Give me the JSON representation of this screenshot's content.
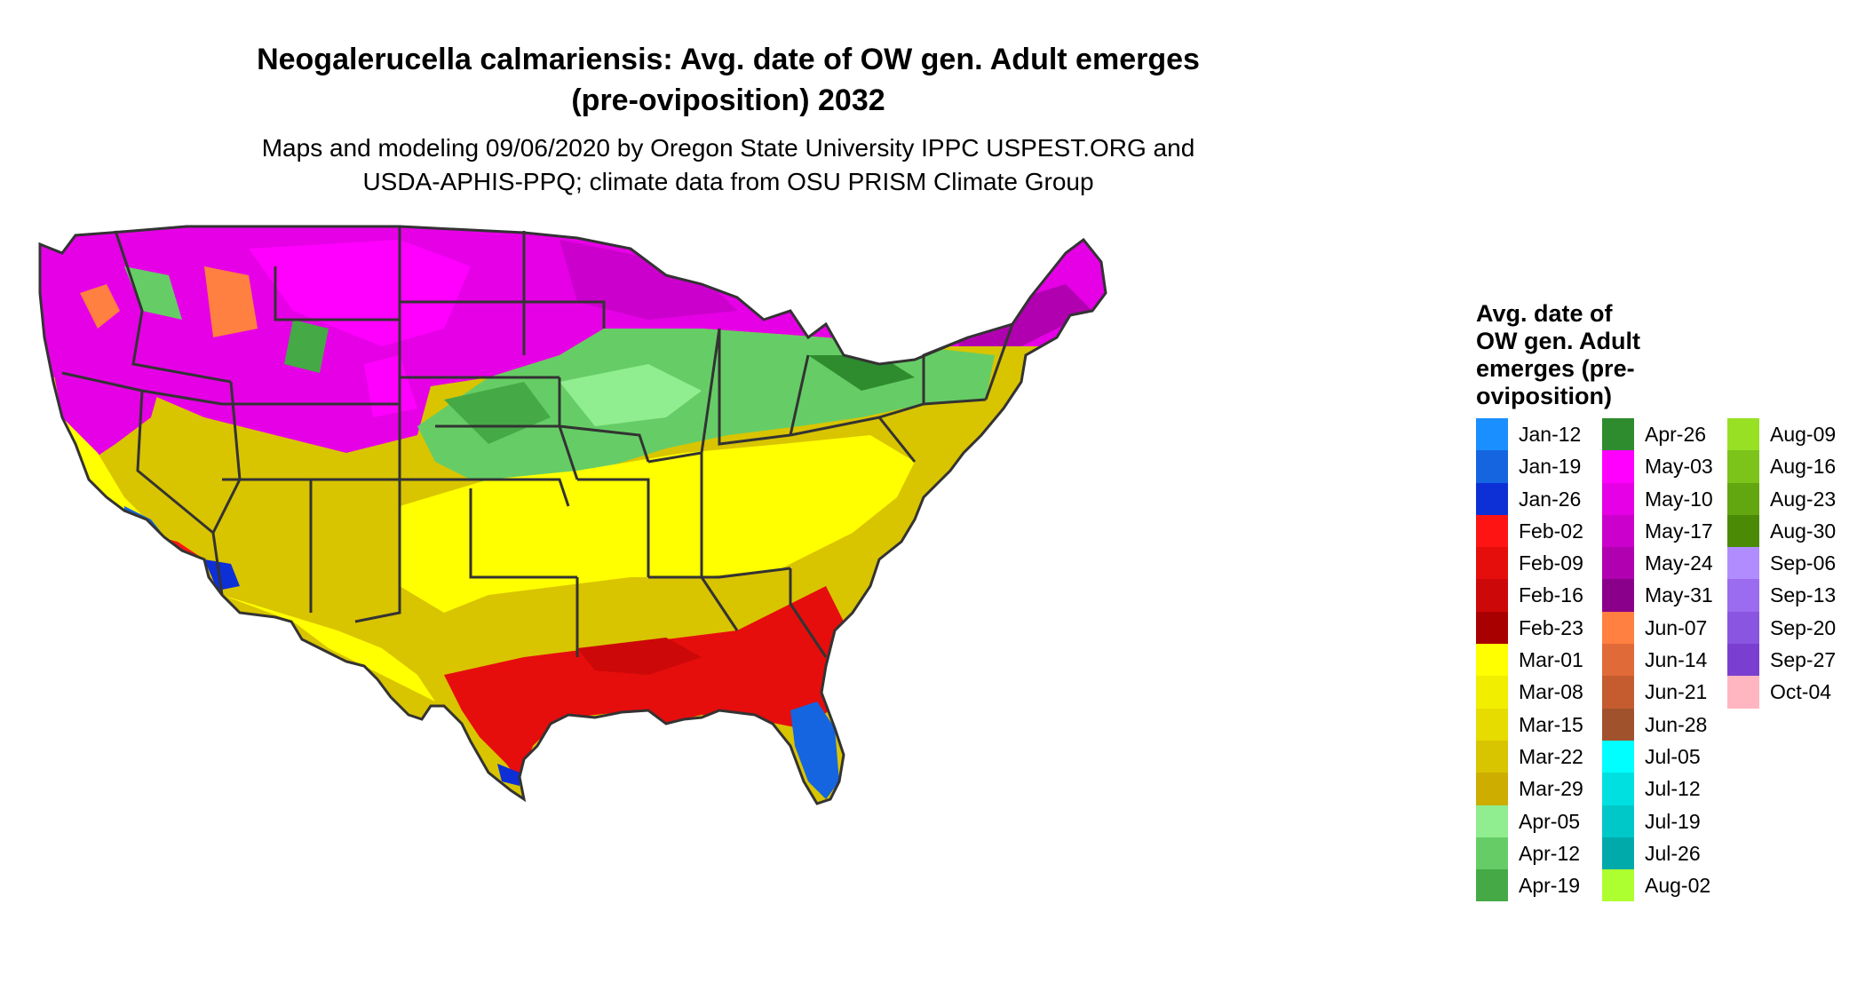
{
  "header": {
    "title_line1": "Neogalerucella calmariensis: Avg. date of OW gen. Adult emerges",
    "title_line2": "(pre-oviposition) 2032",
    "subtitle_line1": "Maps and modeling 09/06/2020 by Oregon State University IPPC USPEST.ORG and",
    "subtitle_line2": "USDA-APHIS-PPQ; climate data from OSU PRISM Climate Group"
  },
  "legend": {
    "title_lines": [
      "Avg. date of",
      "OW gen. Adult",
      "emerges (pre-",
      "oviposition)"
    ],
    "columns": [
      [
        {
          "label": "Jan-12",
          "color": "#1a8fff"
        },
        {
          "label": "Jan-19",
          "color": "#1565e0"
        },
        {
          "label": "Jan-26",
          "color": "#0d2fd6"
        },
        {
          "label": "Feb-02",
          "color": "#ff1414"
        },
        {
          "label": "Feb-09",
          "color": "#e60d0d"
        },
        {
          "label": "Feb-16",
          "color": "#cc0808"
        },
        {
          "label": "Feb-23",
          "color": "#a80000"
        },
        {
          "label": "Mar-01",
          "color": "#ffff00"
        },
        {
          "label": "Mar-08",
          "color": "#f2ee00"
        },
        {
          "label": "Mar-15",
          "color": "#e6dc00"
        },
        {
          "label": "Mar-22",
          "color": "#d9c400"
        },
        {
          "label": "Mar-29",
          "color": "#ccad00"
        },
        {
          "label": "Apr-05",
          "color": "#90ee90"
        },
        {
          "label": "Apr-12",
          "color": "#66cd66"
        },
        {
          "label": "Apr-19",
          "color": "#45aa45"
        }
      ],
      [
        {
          "label": "Apr-26",
          "color": "#2e8b2e"
        },
        {
          "label": "May-03",
          "color": "#ff00ff"
        },
        {
          "label": "May-10",
          "color": "#e600e6"
        },
        {
          "label": "May-17",
          "color": "#cc00cc"
        },
        {
          "label": "May-24",
          "color": "#b000b0"
        },
        {
          "label": "May-31",
          "color": "#8b008b"
        },
        {
          "label": "Jun-07",
          "color": "#ff8040"
        },
        {
          "label": "Jun-14",
          "color": "#e06a38"
        },
        {
          "label": "Jun-21",
          "color": "#c45c30"
        },
        {
          "label": "Jun-28",
          "color": "#a0522d"
        },
        {
          "label": "Jul-05",
          "color": "#00ffff"
        },
        {
          "label": "Jul-12",
          "color": "#00e0e0"
        },
        {
          "label": "Jul-19",
          "color": "#00c8c8"
        },
        {
          "label": "Jul-26",
          "color": "#00aaaa"
        },
        {
          "label": "Aug-02",
          "color": "#adff2f"
        }
      ],
      [
        {
          "label": "Aug-09",
          "color": "#98e024"
        },
        {
          "label": "Aug-16",
          "color": "#7cc41a"
        },
        {
          "label": "Aug-23",
          "color": "#62a610"
        },
        {
          "label": "Aug-30",
          "color": "#4a8a05"
        },
        {
          "label": "Sep-06",
          "color": "#b08cff"
        },
        {
          "label": "Sep-13",
          "color": "#9b6bf0"
        },
        {
          "label": "Sep-20",
          "color": "#8a55e0"
        },
        {
          "label": "Sep-27",
          "color": "#7a3fd0"
        },
        {
          "label": "Oct-04",
          "color": "#ffb6c1"
        }
      ]
    ]
  }
}
